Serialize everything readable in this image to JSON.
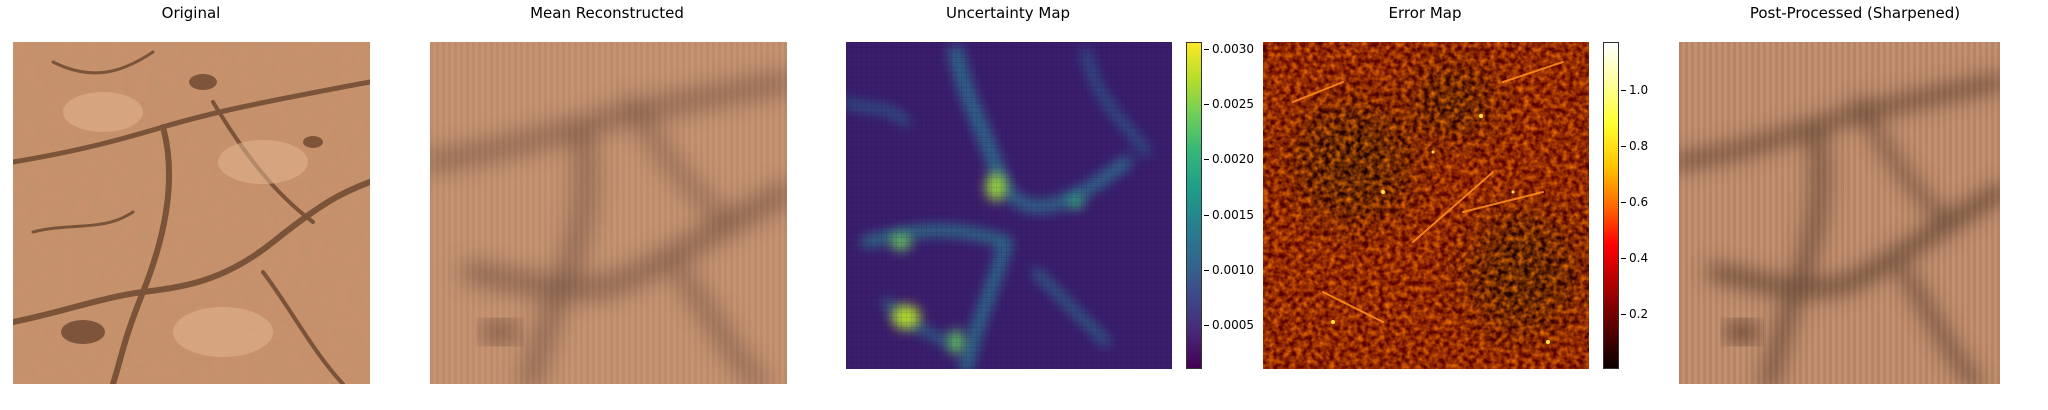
{
  "panels": [
    {
      "title": "Original"
    },
    {
      "title": "Mean Reconstructed"
    },
    {
      "title": "Uncertainty Map"
    },
    {
      "title": "Error Map"
    },
    {
      "title": "Post-Processed (Sharpened)"
    }
  ],
  "uncertainty_colorbar": {
    "colormap": "viridis",
    "range": [
      0.0001,
      0.00305
    ],
    "ticks": [
      "0.0030",
      "0.0025",
      "0.0020",
      "0.0015",
      "0.0010",
      "0.0005"
    ]
  },
  "error_colorbar": {
    "colormap": "hot",
    "range": [
      0.0,
      1.17
    ],
    "ticks": [
      "1.0",
      "0.8",
      "0.6",
      "0.4",
      "0.2"
    ]
  },
  "colors": {
    "rock_base": "#c9916a",
    "rock_shadow": "#7a5338",
    "blur_base": "#c69372",
    "uncert_base": "#3b1d6e",
    "error_base": "#5a0000"
  }
}
